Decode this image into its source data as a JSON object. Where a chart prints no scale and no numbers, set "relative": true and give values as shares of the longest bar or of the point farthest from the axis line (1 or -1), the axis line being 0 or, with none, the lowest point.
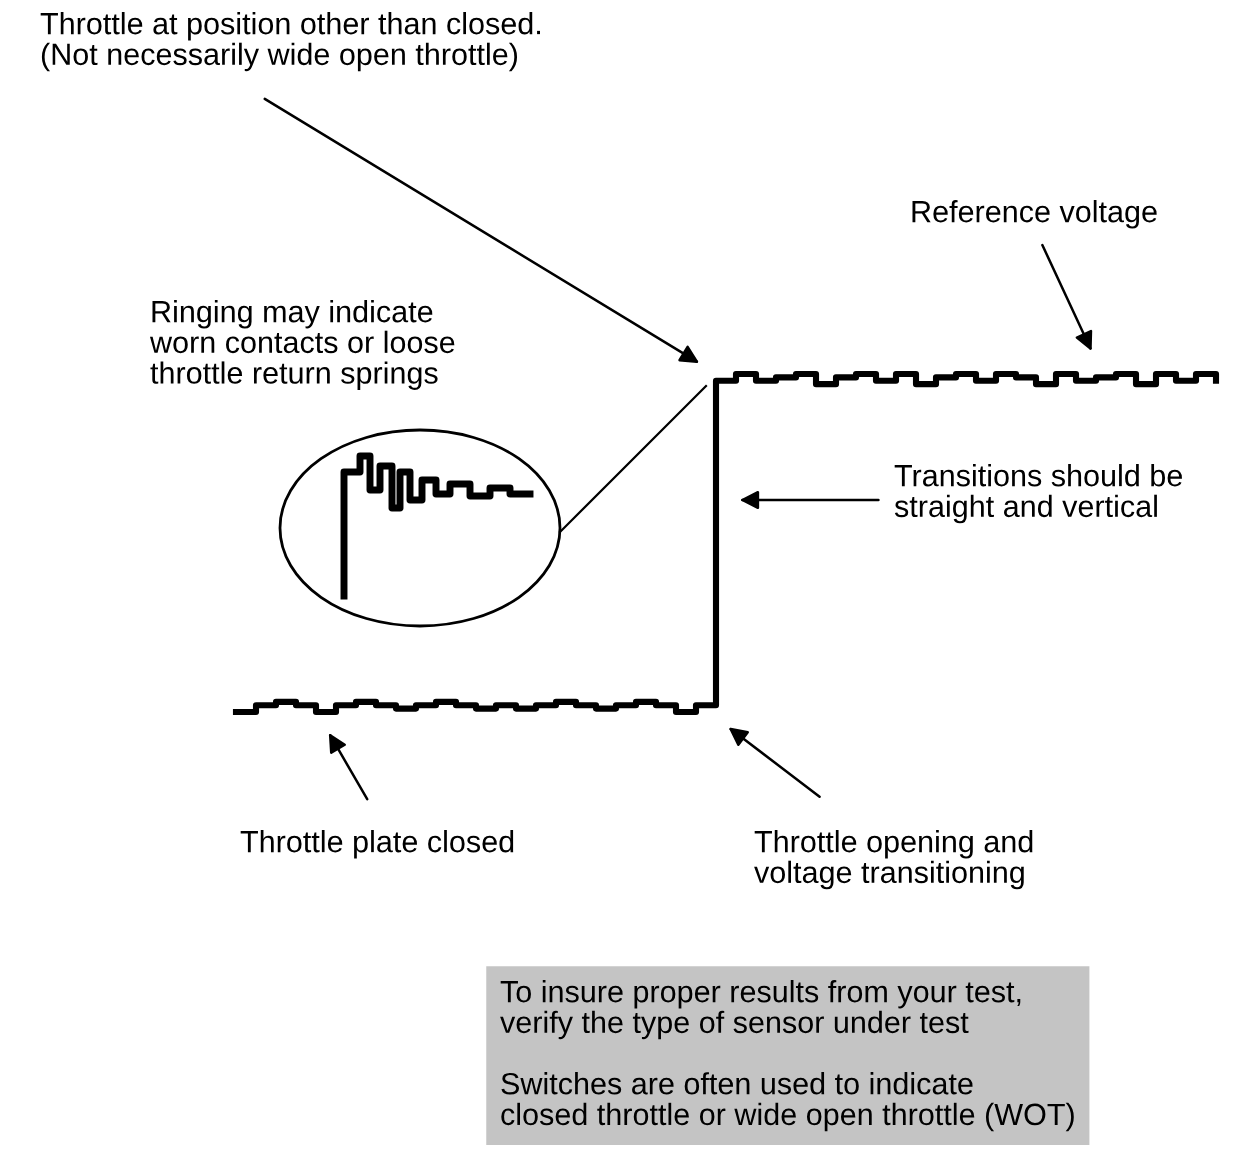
{
  "chart_data": {
    "type": "step",
    "relative": true,
    "legend": false,
    "categories": [
      null,
      null,
      null,
      null,
      null,
      null,
      null,
      null,
      null,
      null,
      null,
      null,
      null,
      null,
      null,
      null,
      null,
      null,
      null,
      null,
      null,
      null,
      null,
      null,
      null,
      null,
      null,
      null,
      null,
      null,
      null,
      null,
      null,
      null,
      null,
      null,
      null,
      null,
      null,
      null,
      null,
      null,
      null,
      null,
      null,
      null,
      null,
      null,
      null,
      null
    ],
    "series": [
      {
        "color": "#000000",
        "values": [
          0.0,
          0.02,
          0.03,
          0.02,
          0.0,
          0.02,
          0.03,
          0.02,
          0.01,
          0.02,
          0.03,
          0.02,
          0.01,
          0.02,
          0.01,
          0.02,
          0.03,
          0.02,
          0.01,
          0.02,
          0.03,
          0.02,
          0.0,
          0.02,
          0.98,
          1.0,
          0.98,
          0.99,
          1.0,
          0.97,
          0.99,
          1.0,
          0.98,
          1.0,
          0.97,
          0.99,
          1.0,
          0.98,
          1.0,
          0.99,
          0.97,
          1.0,
          0.98,
          0.99,
          1.0,
          0.97,
          1.0,
          0.98,
          1.0,
          0.98
        ]
      }
    ],
    "annotations": [
      "Throttle at position other than closed.\n(Not necessarily wide open throttle)",
      "Reference voltage",
      "Ringing may indicate\nworn contacts or loose\nthrottle return springs",
      "Transitions should be\nstraight and vertical",
      "Throttle plate closed",
      "Throttle opening and\nvoltage transitioning",
      "To insure proper results from your test,\nverify the type of sensor under test\n\nSwitches are often used to indicate\nclosed throttle or wide open throttle (WOT)"
    ]
  }
}
